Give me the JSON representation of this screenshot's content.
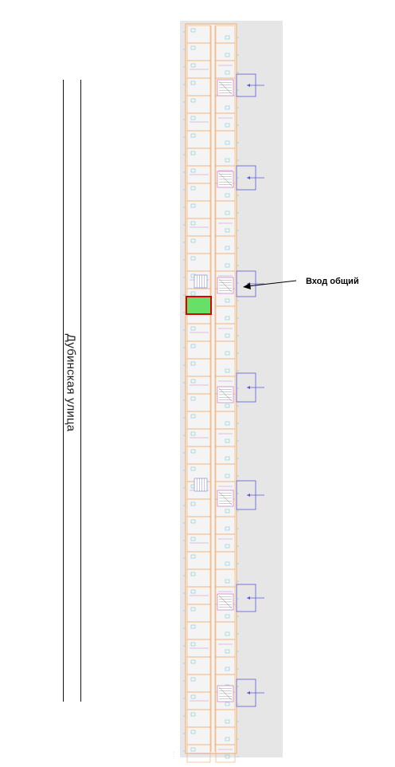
{
  "street": {
    "name": "Дубинская улица"
  },
  "entrance": {
    "label": "Вход общий"
  },
  "colors": {
    "plan_background": "#e6e6e6",
    "walls": "#f2a968",
    "partitions": "#c987c9",
    "fixtures": "#7fcdd0",
    "selected_unit_fill": "#66e066",
    "selected_unit_border": "#e00000"
  },
  "icons": [
    "entrance-arrow-icon",
    "stair-icon"
  ]
}
